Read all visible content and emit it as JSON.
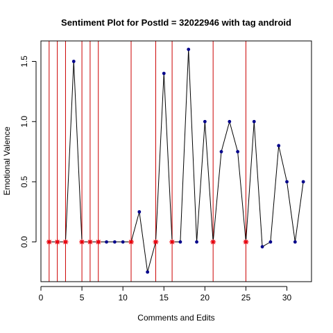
{
  "chart_data": {
    "type": "line",
    "title": "Sentiment Plot for PostId =  32022946  with tag  android",
    "xlabel": "Comments and Edits",
    "ylabel": "Emotional Valence",
    "xlim": [
      0,
      33
    ],
    "ylim": [
      -0.33,
      1.67
    ],
    "xticks": [
      0,
      5,
      10,
      15,
      20,
      25,
      30
    ],
    "yticks": [
      0.0,
      0.5,
      1.0,
      1.5
    ],
    "ytick_labels": [
      "0.0",
      "0.5",
      "1.0",
      "1.5"
    ],
    "grid": false,
    "series": [
      {
        "x": [
          1,
          2,
          3,
          4,
          5,
          6,
          7,
          8,
          9,
          10,
          11,
          12,
          13,
          14,
          15,
          16,
          17,
          18,
          19,
          20,
          21,
          22,
          23,
          24,
          25,
          26,
          27,
          28,
          29,
          30,
          31,
          32
        ],
        "y": [
          0,
          0,
          0,
          1.5,
          0,
          0,
          0,
          0,
          0,
          0,
          0,
          0.25,
          -0.25,
          0,
          1.4,
          0,
          0,
          1.6,
          0,
          1.0,
          0,
          0.75,
          1.0,
          0.75,
          0,
          1.0,
          -0.04,
          0,
          0.8,
          0.5,
          0,
          0.5
        ],
        "line_color": "#000000",
        "marker_color": "#00008B"
      }
    ],
    "edit_markers": {
      "x": [
        1,
        2,
        3,
        5,
        6,
        7,
        11,
        14,
        16,
        21,
        25
      ],
      "vline_color": "#CC0000",
      "marker_color": "#FF0000"
    }
  }
}
